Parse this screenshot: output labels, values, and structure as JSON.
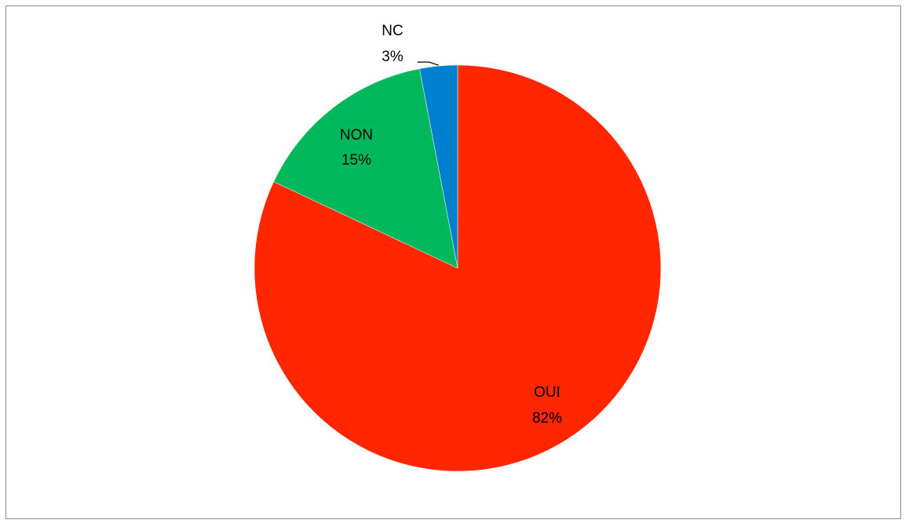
{
  "chart_data": {
    "type": "pie",
    "title": "",
    "start_angle_deg": 0,
    "direction": "clockwise",
    "legend": "none",
    "slices": [
      {
        "label": "OUI",
        "value": 82,
        "percent_label": "82%",
        "color": "#ff2600"
      },
      {
        "label": "NON",
        "value": 15,
        "percent_label": "15%",
        "color": "#00b85c"
      },
      {
        "label": "NC",
        "value": 3,
        "percent_label": "3%",
        "color": "#0080d0"
      }
    ]
  }
}
